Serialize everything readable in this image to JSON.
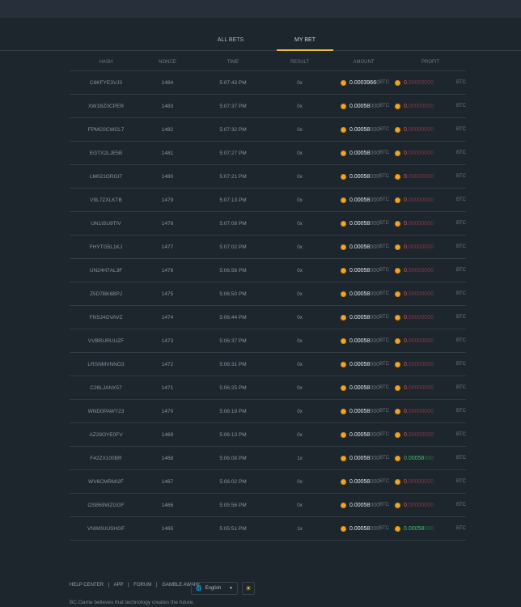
{
  "tabs": [
    "ALL BETS",
    "MY BET"
  ],
  "active_tab": "MY BET",
  "columns": [
    "HASH",
    "NONCE",
    "TIME",
    "RESULT",
    "AMOUNT",
    "PROFIT"
  ],
  "rows": [
    {
      "hash": "C8KFYE3VJ3",
      "nonce": "1484",
      "time": "5:07:43 PM",
      "result": "0x",
      "amount_main": "0.0003966",
      "amount_dim": "0",
      "unit": "BTC",
      "profit_main": "0.",
      "profit_dim": "00000000",
      "profit_status": "lose"
    },
    {
      "hash": "XW1BZ0CPER",
      "nonce": "1483",
      "time": "5:07:37 PM",
      "result": "0x",
      "amount_main": "0.00058",
      "amount_dim": "000",
      "unit": "BTC",
      "profit_main": "0.",
      "profit_dim": "00000000",
      "profit_status": "lose"
    },
    {
      "hash": "FPMC0CWCL7",
      "nonce": "1482",
      "time": "5:07:32 PM",
      "result": "0x",
      "amount_main": "0.00058",
      "amount_dim": "000",
      "unit": "BTC",
      "profit_main": "0.",
      "profit_dim": "00000000",
      "profit_status": "lose"
    },
    {
      "hash": "EGTX2LJE5B",
      "nonce": "1481",
      "time": "5:07:27 PM",
      "result": "0x",
      "amount_main": "0.00058",
      "amount_dim": "000",
      "unit": "BTC",
      "profit_main": "0.",
      "profit_dim": "00000000",
      "profit_status": "lose"
    },
    {
      "hash": "LM021ORGI7",
      "nonce": "1480",
      "time": "5:07:21 PM",
      "result": "0x",
      "amount_main": "0.00058",
      "amount_dim": "000",
      "unit": "BTC",
      "profit_main": "0.",
      "profit_dim": "00000000",
      "profit_status": "lose"
    },
    {
      "hash": "V9L7ZXLKTB",
      "nonce": "1479",
      "time": "5:07:13 PM",
      "result": "0x",
      "amount_main": "0.00058",
      "amount_dim": "000",
      "unit": "BTC",
      "profit_main": "0.",
      "profit_dim": "00000000",
      "profit_status": "lose"
    },
    {
      "hash": "UN1ISU9TIV",
      "nonce": "1478",
      "time": "5:07:08 PM",
      "result": "0x",
      "amount_main": "0.00058",
      "amount_dim": "000",
      "unit": "BTC",
      "profit_main": "0.",
      "profit_dim": "00000000",
      "profit_status": "lose"
    },
    {
      "hash": "FHYTG5L1KJ",
      "nonce": "1477",
      "time": "5:07:02 PM",
      "result": "0x",
      "amount_main": "0.00058",
      "amount_dim": "000",
      "unit": "BTC",
      "profit_main": "0.",
      "profit_dim": "00000000",
      "profit_status": "lose"
    },
    {
      "hash": "UN24H7AL3F",
      "nonce": "1476",
      "time": "5:06:56 PM",
      "result": "0x",
      "amount_main": "0.00058",
      "amount_dim": "000",
      "unit": "BTC",
      "profit_main": "0.",
      "profit_dim": "00000000",
      "profit_status": "lose"
    },
    {
      "hash": "Z5D7BK6BPJ",
      "nonce": "1475",
      "time": "5:06:50 PM",
      "result": "0x",
      "amount_main": "0.00058",
      "amount_dim": "000",
      "unit": "BTC",
      "profit_main": "0.",
      "profit_dim": "00000000",
      "profit_status": "lose"
    },
    {
      "hash": "FNSJ4GVAVZ",
      "nonce": "1474",
      "time": "5:06:44 PM",
      "result": "0x",
      "amount_main": "0.00058",
      "amount_dim": "000",
      "unit": "BTC",
      "profit_main": "0.",
      "profit_dim": "00000000",
      "profit_status": "lose"
    },
    {
      "hash": "VVBRURUUZF",
      "nonce": "1473",
      "time": "5:06:37 PM",
      "result": "0x",
      "amount_main": "0.00058",
      "amount_dim": "000",
      "unit": "BTC",
      "profit_main": "0.",
      "profit_dim": "00000000",
      "profit_status": "lose"
    },
    {
      "hash": "LRSNMVNNG3",
      "nonce": "1472",
      "time": "5:06:31 PM",
      "result": "0x",
      "amount_main": "0.00058",
      "amount_dim": "000",
      "unit": "BTC",
      "profit_main": "0.",
      "profit_dim": "00000000",
      "profit_status": "lose"
    },
    {
      "hash": "C26LJANX57",
      "nonce": "1471",
      "time": "5:06:25 PM",
      "result": "0x",
      "amount_main": "0.00058",
      "amount_dim": "000",
      "unit": "BTC",
      "profit_main": "0.",
      "profit_dim": "00000000",
      "profit_status": "lose"
    },
    {
      "hash": "WND0PAWY23",
      "nonce": "1470",
      "time": "5:06:19 PM",
      "result": "0x",
      "amount_main": "0.00058",
      "amount_dim": "000",
      "unit": "BTC",
      "profit_main": "0.",
      "profit_dim": "00000000",
      "profit_status": "lose"
    },
    {
      "hash": "AZ28OYE0FV",
      "nonce": "1469",
      "time": "5:06:13 PM",
      "result": "0x",
      "amount_main": "0.00058",
      "amount_dim": "000",
      "unit": "BTC",
      "profit_main": "0.",
      "profit_dim": "00000000",
      "profit_status": "lose"
    },
    {
      "hash": "F42ZX100BR",
      "nonce": "1468",
      "time": "5:06:08 PM",
      "result": "1x",
      "amount_main": "0.00058",
      "amount_dim": "000",
      "unit": "BTC",
      "profit_main": "0.00058",
      "profit_dim": "000",
      "profit_status": "win"
    },
    {
      "hash": "WV6CMRMI2F",
      "nonce": "1467",
      "time": "5:06:02 PM",
      "result": "0x",
      "amount_main": "0.00058",
      "amount_dim": "000",
      "unit": "BTC",
      "profit_main": "0.",
      "profit_dim": "00000000",
      "profit_status": "lose"
    },
    {
      "hash": "OSB69WZGGF",
      "nonce": "1466",
      "time": "5:05:56 PM",
      "result": "0x",
      "amount_main": "0.00058",
      "amount_dim": "000",
      "unit": "BTC",
      "profit_main": "0.",
      "profit_dim": "00000000",
      "profit_status": "lose"
    },
    {
      "hash": "VNW0UUSHGF",
      "nonce": "1465",
      "time": "5:05:51 PM",
      "result": "1x",
      "amount_main": "0.00058",
      "amount_dim": "000",
      "unit": "BTC",
      "profit_main": "0.00058",
      "profit_dim": "000",
      "profit_status": "win"
    }
  ],
  "footer": {
    "links": [
      "HELP CENTER",
      "APP",
      "FORUM",
      "GAMBLE AWARE"
    ],
    "separator": "|",
    "language": "English",
    "tagline": "BC.Game believes that technology creates the future."
  },
  "icons": {
    "coin": "btc-coin-icon",
    "globe": "globe-icon",
    "theme": "sun-icon"
  },
  "colors": {
    "accent": "#f0c040",
    "lose": "#e05a6a",
    "win": "#3ec46d"
  }
}
